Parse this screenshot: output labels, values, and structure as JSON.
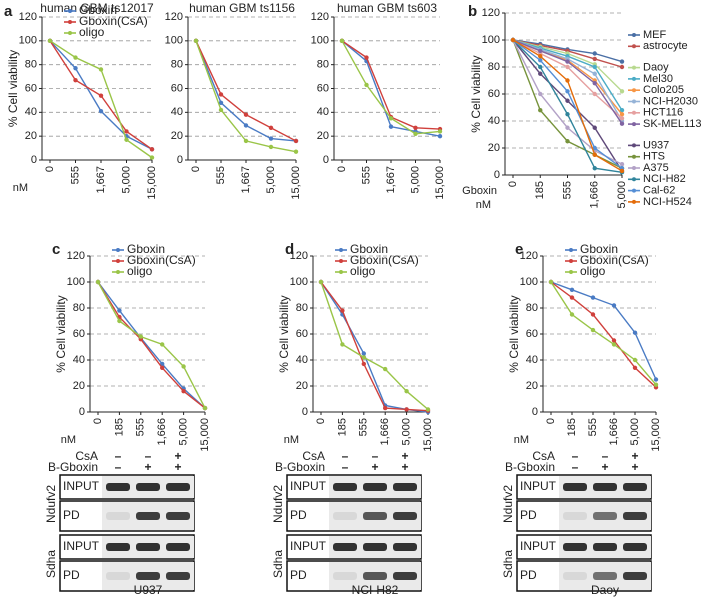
{
  "panel_labels": [
    "a",
    "b",
    "c",
    "d",
    "e"
  ],
  "chart_data": [
    {
      "type": "line",
      "title": "human GBM ts12017",
      "y_label": "% Cell viability",
      "x_unit": "nM",
      "legend": "upper-right",
      "grid": true,
      "categories": [
        "0",
        "555",
        "1,667",
        "5,000",
        "15,000"
      ],
      "ylim": [
        0,
        120
      ],
      "yticks": [
        0,
        20,
        40,
        60,
        80,
        100,
        120
      ],
      "series": [
        {
          "name": "Gboxin",
          "color": "#4a7bc4",
          "values": [
            100,
            77,
            41,
            20,
            9
          ]
        },
        {
          "name": "Gboxin(CsA)",
          "color": "#d0403c",
          "values": [
            100,
            67,
            54,
            24,
            9
          ]
        },
        {
          "name": "oligo",
          "color": "#9ac548",
          "values": [
            100,
            86,
            76,
            17,
            2
          ]
        }
      ]
    },
    {
      "type": "line",
      "title": "human GBM ts1156",
      "grid": true,
      "categories": [
        "0",
        "555",
        "1,667",
        "5,000",
        "15,000"
      ],
      "ylim": [
        0,
        120
      ],
      "yticks": [
        0,
        20,
        40,
        60,
        80,
        100,
        120
      ],
      "series": [
        {
          "color": "#4a7bc4",
          "values": [
            100,
            48,
            29,
            18,
            16
          ]
        },
        {
          "color": "#d0403c",
          "values": [
            100,
            55,
            38,
            27,
            16
          ]
        },
        {
          "color": "#9ac548",
          "values": [
            100,
            42,
            16,
            11,
            7
          ]
        }
      ]
    },
    {
      "type": "line",
      "title": "human GBM ts603",
      "grid": true,
      "categories": [
        "0",
        "555",
        "1,667",
        "5,000",
        "15,000"
      ],
      "ylim": [
        0,
        120
      ],
      "yticks": [
        0,
        20,
        40,
        60,
        80,
        100,
        120
      ],
      "series": [
        {
          "color": "#4a7bc4",
          "values": [
            100,
            83,
            28,
            24,
            20
          ]
        },
        {
          "color": "#d0403c",
          "values": [
            100,
            86,
            36,
            27,
            26
          ]
        },
        {
          "color": "#9ac548",
          "values": [
            100,
            63,
            35,
            22,
            24
          ]
        }
      ]
    },
    {
      "type": "line",
      "y_label": "% Cell viability",
      "x_label": "Gboxin",
      "x_unit": "nM",
      "legend": "outside-right",
      "grid": true,
      "categories": [
        "0",
        "185",
        "555",
        "1,666",
        "5,000"
      ],
      "ylim": [
        0,
        120
      ],
      "yticks": [
        0,
        20,
        40,
        60,
        80,
        100,
        120
      ],
      "series": [
        {
          "name": "MEF",
          "color": "#4a6fa5",
          "values": [
            100,
            97,
            93,
            90,
            84
          ]
        },
        {
          "name": "astrocyte",
          "color": "#c0504d",
          "values": [
            100,
            96,
            92,
            86,
            80
          ]
        },
        {
          "name": "Daoy",
          "color": "#b8d98f",
          "values": [
            100,
            95,
            90,
            82,
            62
          ]
        },
        {
          "name": "Mel30",
          "color": "#4bacc6",
          "values": [
            100,
            94,
            88,
            80,
            48
          ]
        },
        {
          "name": "Colo205",
          "color": "#f79646",
          "values": [
            100,
            92,
            85,
            70,
            45
          ]
        },
        {
          "name": "NCI-H2030",
          "color": "#95b3d7",
          "values": [
            100,
            93,
            86,
            75,
            40
          ]
        },
        {
          "name": "HCT116",
          "color": "#e6a0a0",
          "values": [
            100,
            90,
            80,
            60,
            42
          ]
        },
        {
          "name": "SK-MEL113",
          "color": "#8064a2",
          "values": [
            100,
            92,
            84,
            68,
            38
          ]
        },
        {
          "name": "U937",
          "color": "#5f497a",
          "values": [
            100,
            75,
            55,
            35,
            3
          ]
        },
        {
          "name": "HTS",
          "color": "#77933c",
          "values": [
            100,
            48,
            25,
            15,
            5
          ]
        },
        {
          "name": "A375",
          "color": "#b3a2c7",
          "values": [
            100,
            60,
            35,
            18,
            8
          ]
        },
        {
          "name": "NCI-H82",
          "color": "#31859c",
          "values": [
            100,
            80,
            45,
            5,
            2
          ]
        },
        {
          "name": "Cal-62",
          "color": "#558ed5",
          "values": [
            100,
            85,
            62,
            20,
            5
          ]
        },
        {
          "name": "NCI-H524",
          "color": "#e46c0a",
          "values": [
            100,
            88,
            70,
            15,
            3
          ]
        }
      ]
    },
    {
      "type": "line",
      "y_label": "% Cell viability",
      "x_unit": "nM",
      "legend": "upper-right",
      "grid": true,
      "categories": [
        "0",
        "185",
        "555",
        "1,666",
        "5,000",
        "15,000"
      ],
      "ylim": [
        0,
        120
      ],
      "yticks": [
        0,
        20,
        40,
        60,
        80,
        100,
        120
      ],
      "series": [
        {
          "name": "Gboxin",
          "color": "#4a7bc4",
          "values": [
            100,
            78,
            57,
            37,
            18,
            3
          ]
        },
        {
          "name": "Gboxin(CsA)",
          "color": "#d0403c",
          "values": [
            100,
            73,
            56,
            34,
            16,
            3
          ]
        },
        {
          "name": "oligo",
          "color": "#9ac548",
          "values": [
            100,
            70,
            58,
            52,
            35,
            3
          ]
        }
      ]
    },
    {
      "type": "line",
      "y_label": "% Cell viability",
      "x_unit": "nM",
      "legend": "upper-right",
      "grid": true,
      "categories": [
        "0",
        "185",
        "555",
        "1,666",
        "5,000",
        "15,000"
      ],
      "ylim": [
        0,
        120
      ],
      "yticks": [
        0,
        20,
        40,
        60,
        80,
        100,
        120
      ],
      "series": [
        {
          "name": "Gboxin",
          "color": "#4a7bc4",
          "values": [
            100,
            75,
            45,
            5,
            2,
            0
          ]
        },
        {
          "name": "Gboxin(CsA)",
          "color": "#d0403c",
          "values": [
            100,
            78,
            37,
            3,
            2,
            1
          ]
        },
        {
          "name": "oligo",
          "color": "#9ac548",
          "values": [
            100,
            52,
            42,
            33,
            16,
            2
          ]
        }
      ]
    },
    {
      "type": "line",
      "y_label": "% Cell viability",
      "x_unit": "nM",
      "legend": "upper-right",
      "grid": true,
      "categories": [
        "0",
        "185",
        "555",
        "1,666",
        "5,000",
        "15,000"
      ],
      "ylim": [
        0,
        120
      ],
      "yticks": [
        0,
        20,
        40,
        60,
        80,
        100,
        120
      ],
      "series": [
        {
          "name": "Gboxin",
          "color": "#4a7bc4",
          "values": [
            100,
            94,
            88,
            82,
            61,
            25
          ]
        },
        {
          "name": "Gboxin(CsA)",
          "color": "#d0403c",
          "values": [
            100,
            88,
            75,
            55,
            34,
            19
          ]
        },
        {
          "name": "oligo",
          "color": "#9ac548",
          "values": [
            100,
            75,
            63,
            52,
            40,
            21
          ]
        }
      ]
    }
  ],
  "blots": [
    {
      "treatments": [
        {
          "label": "CsA",
          "signs": [
            "–",
            "–",
            "+"
          ]
        },
        {
          "label": "B-Gboxin",
          "signs": [
            "–",
            "+",
            "+"
          ]
        }
      ],
      "proteins": [
        {
          "name": "Ndufv2",
          "rows": [
            "INPUT",
            "PD"
          ]
        },
        {
          "name": "Sdha",
          "rows": [
            "INPUT",
            "PD"
          ]
        }
      ],
      "cell_line": "U937"
    },
    {
      "treatments": [
        {
          "label": "CsA",
          "signs": [
            "–",
            "–",
            "+"
          ]
        },
        {
          "label": "B-Gboxin",
          "signs": [
            "–",
            "+",
            "+"
          ]
        }
      ],
      "proteins": [
        {
          "name": "Ndufv2",
          "rows": [
            "INPUT",
            "PD"
          ]
        },
        {
          "name": "Sdha",
          "rows": [
            "INPUT",
            "PD"
          ]
        }
      ],
      "cell_line": "NCI-H82"
    },
    {
      "treatments": [
        {
          "label": "CsA",
          "signs": [
            "–",
            "–",
            "+"
          ]
        },
        {
          "label": "B-Gboxin",
          "signs": [
            "–",
            "+",
            "+"
          ]
        }
      ],
      "proteins": [
        {
          "name": "Ndufv2",
          "rows": [
            "INPUT",
            "PD"
          ]
        },
        {
          "name": "Sdha",
          "rows": [
            "INPUT",
            "PD"
          ]
        }
      ],
      "cell_line": "Daoy"
    }
  ]
}
